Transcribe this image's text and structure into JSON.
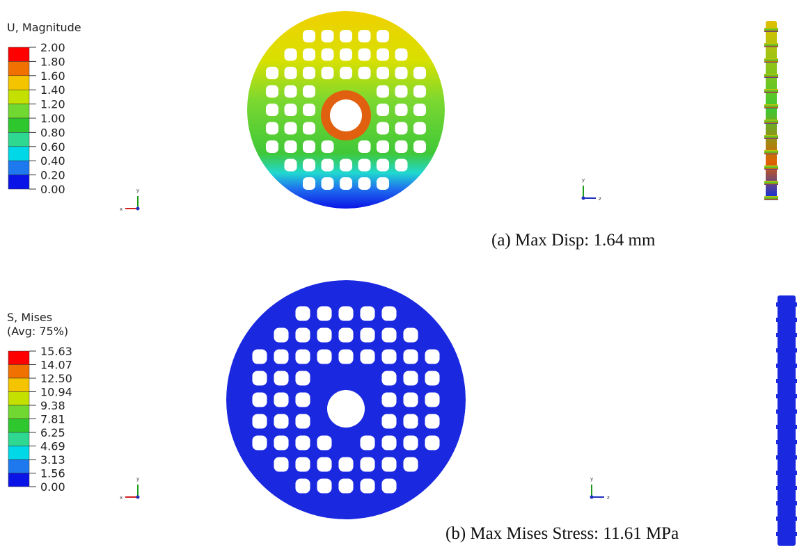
{
  "panels": [
    {
      "legend": {
        "title": [
          "U, Magnitude"
        ],
        "labels": [
          "2.00",
          "1.80",
          "1.60",
          "1.40",
          "1.20",
          "1.00",
          "0.80",
          "0.60",
          "0.40",
          "0.20",
          "0.00"
        ],
        "colors": [
          "#ff0000",
          "#f07000",
          "#f5c400",
          "#c4e000",
          "#70d830",
          "#2ec82e",
          "#2ed890",
          "#00d8e8",
          "#1e78ee",
          "#0a14e6"
        ]
      },
      "triads": [
        [
          "y",
          "x"
        ],
        [
          "y",
          "z"
        ]
      ],
      "caption": "(a) Max Disp: 1.64 mm"
    },
    {
      "legend": {
        "title": [
          "S, Mises",
          "(Avg: 75%)"
        ],
        "labels": [
          "15.63",
          "14.07",
          "12.50",
          "10.94",
          "9.38",
          "7.81",
          "6.25",
          "4.69",
          "3.13",
          "1.56",
          "0.00"
        ],
        "colors": [
          "#ff0000",
          "#f07000",
          "#f5c400",
          "#c4e000",
          "#70d830",
          "#2ec82e",
          "#2ed890",
          "#00d8e8",
          "#1e78ee",
          "#0a14e6"
        ]
      },
      "triads": [
        [
          "y",
          "x"
        ],
        [
          "y",
          "z"
        ]
      ],
      "caption": "(b) Max Mises Stress: 11.61 MPa"
    }
  ]
}
